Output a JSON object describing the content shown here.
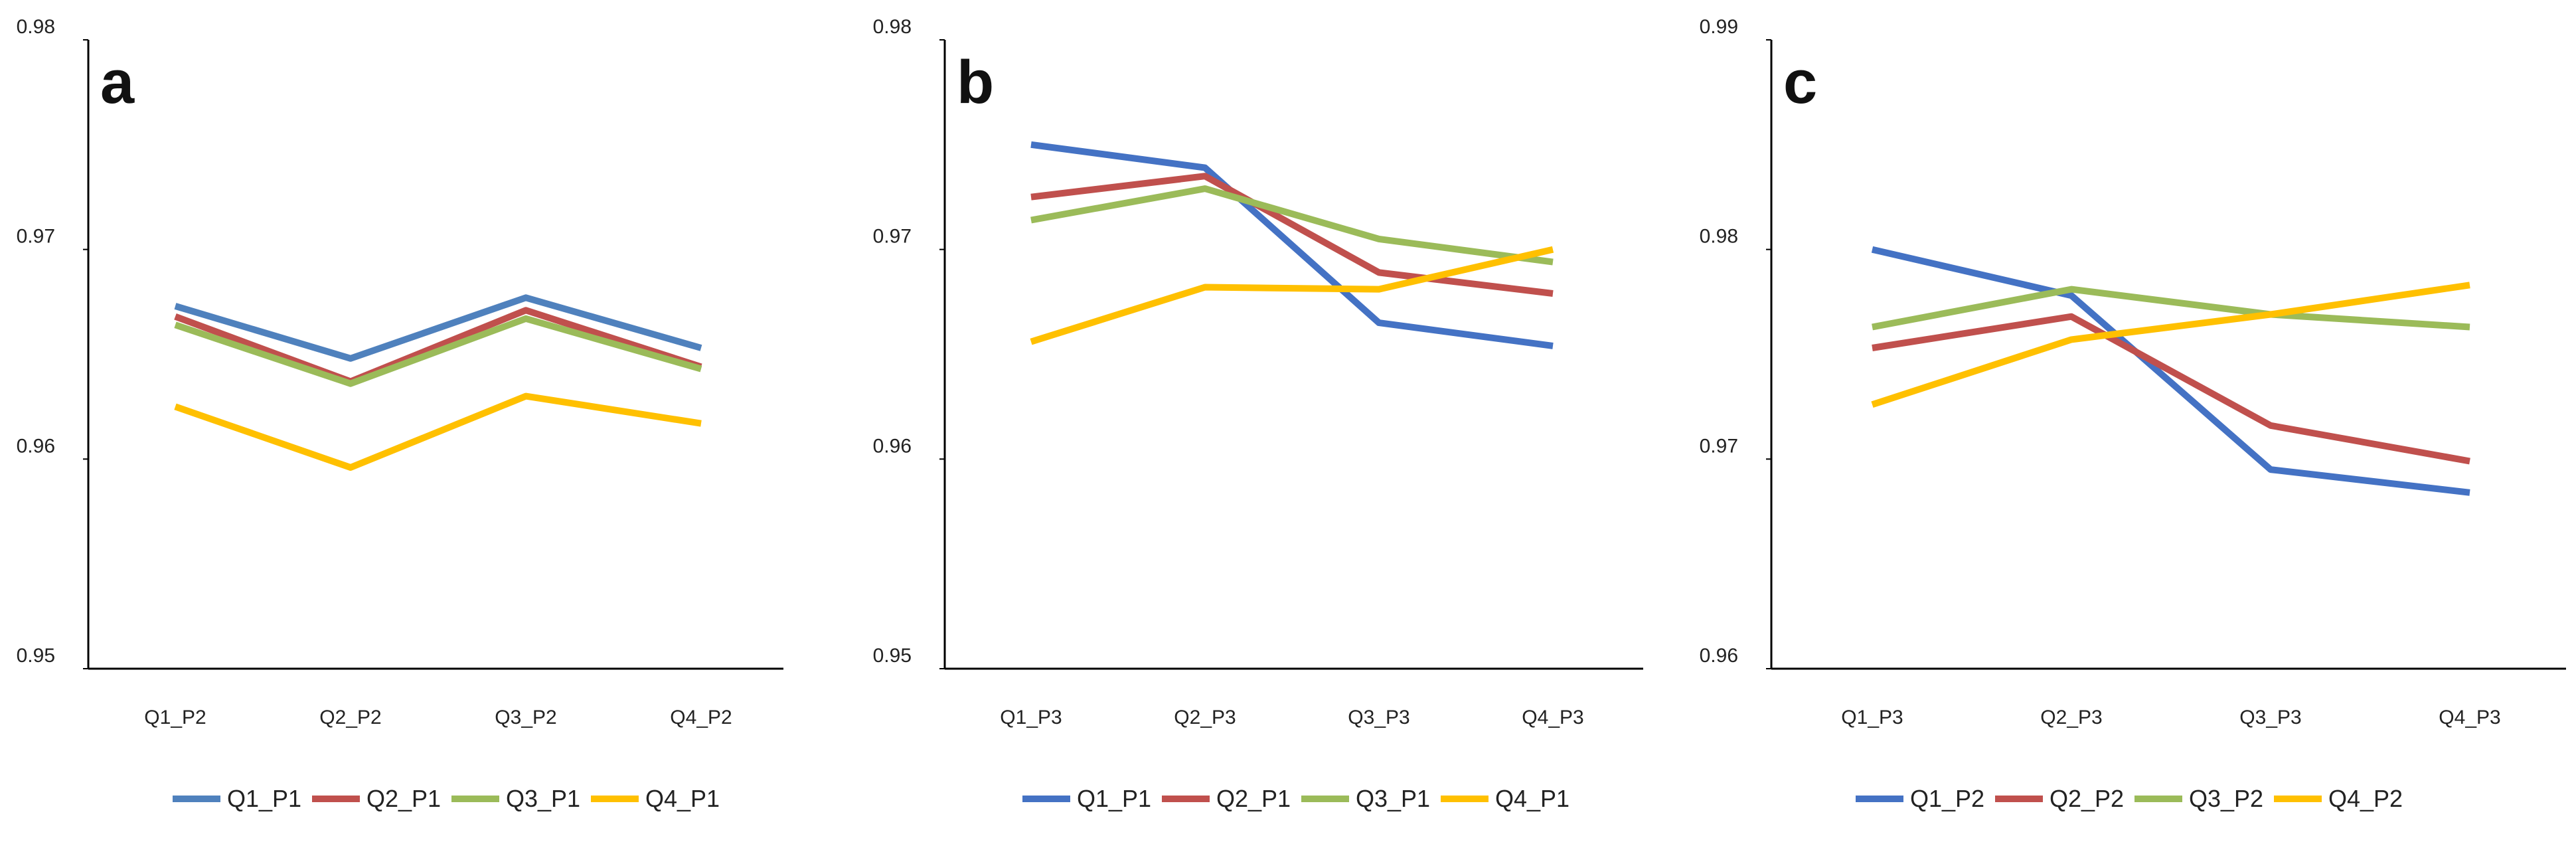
{
  "chart_data": [
    {
      "type": "line",
      "panel_label": "a",
      "categories": [
        "Q1_P2",
        "Q2_P2",
        "Q3_P2",
        "Q4_P2"
      ],
      "y_ticks": [
        "0.95",
        "0.96",
        "0.97",
        "0.98"
      ],
      "ylim": [
        0.95,
        0.98
      ],
      "series": [
        {
          "name": "Q1_P1",
          "color": "#4f81bd",
          "values": [
            0.9673,
            0.9648,
            0.9677,
            0.9653
          ]
        },
        {
          "name": "Q2_P1",
          "color": "#c0504d",
          "values": [
            0.9668,
            0.9637,
            0.9671,
            0.9644
          ]
        },
        {
          "name": "Q3_P1",
          "color": "#9bbb59",
          "values": [
            0.9664,
            0.9636,
            0.9667,
            0.9643
          ]
        },
        {
          "name": "Q4_P1",
          "color": "#ffc000",
          "values": [
            0.9625,
            0.9596,
            0.963,
            0.9617
          ]
        }
      ]
    },
    {
      "type": "line",
      "panel_label": "b",
      "categories": [
        "Q1_P3",
        "Q2_P3",
        "Q3_P3",
        "Q4_P3"
      ],
      "y_ticks": [
        "0.95",
        "0.96",
        "0.97",
        "0.98"
      ],
      "ylim": [
        0.95,
        0.98
      ],
      "series": [
        {
          "name": "Q1_P1",
          "color": "#4472c4",
          "values": [
            0.975,
            0.9739,
            0.9665,
            0.9654
          ]
        },
        {
          "name": "Q2_P1",
          "color": "#c0504d",
          "values": [
            0.9725,
            0.9735,
            0.9689,
            0.9679
          ]
        },
        {
          "name": "Q3_P1",
          "color": "#9bbb59",
          "values": [
            0.9714,
            0.9729,
            0.9705,
            0.9694
          ]
        },
        {
          "name": "Q4_P1",
          "color": "#ffc000",
          "values": [
            0.9656,
            0.9682,
            0.9681,
            0.97
          ]
        }
      ]
    },
    {
      "type": "line",
      "panel_label": "c",
      "categories": [
        "Q1_P3",
        "Q2_P3",
        "Q3_P3",
        "Q4_P3"
      ],
      "y_ticks": [
        "0.96",
        "0.97",
        "0.98",
        "0.99"
      ],
      "ylim": [
        0.96,
        0.99
      ],
      "series": [
        {
          "name": "Q1_P2",
          "color": "#4472c4",
          "values": [
            0.98,
            0.9778,
            0.9695,
            0.9684
          ]
        },
        {
          "name": "Q2_P2",
          "color": "#c0504d",
          "values": [
            0.9753,
            0.9768,
            0.9716,
            0.9699
          ]
        },
        {
          "name": "Q3_P2",
          "color": "#9bbb59",
          "values": [
            0.9763,
            0.9781,
            0.9769,
            0.9763
          ]
        },
        {
          "name": "Q4_P2",
          "color": "#ffc000",
          "values": [
            0.9726,
            0.9757,
            0.9769,
            0.9783
          ]
        }
      ]
    }
  ]
}
